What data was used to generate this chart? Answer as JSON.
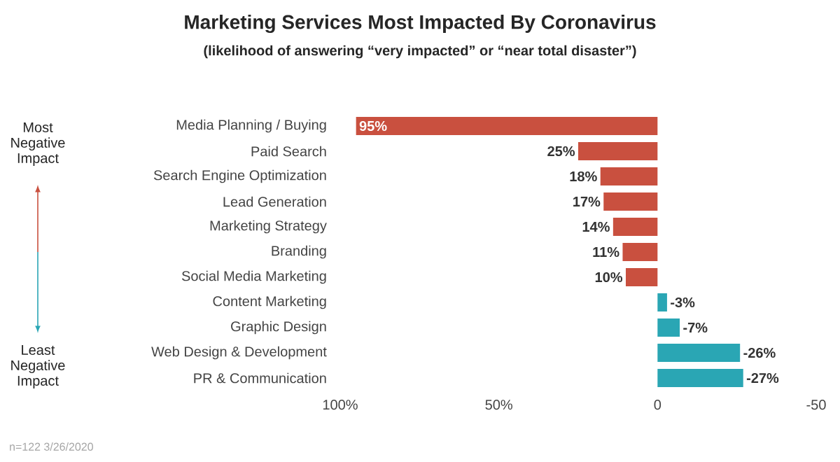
{
  "chart_data": {
    "type": "bar",
    "orientation": "horizontal",
    "title": "Marketing Services Most Impacted By Coronavirus",
    "subtitle": "(likelihood of answering “very impacted” or “near total disaster”)",
    "categories": [
      "Media Planning / Buying",
      "Paid Search",
      "Search Engine Optimization",
      "Lead Generation",
      "Marketing Strategy",
      "Branding",
      "Social Media Marketing",
      "Content Marketing",
      "Graphic Design",
      "Web Design & Development",
      "PR & Communication"
    ],
    "values": [
      95,
      25,
      18,
      17,
      14,
      11,
      10,
      -3,
      -7,
      -26,
      -27
    ],
    "value_labels": [
      "95%",
      "25%",
      "18%",
      "17%",
      "14%",
      "11%",
      "10%",
      "-3%",
      "-7%",
      "-26%",
      "-27%"
    ],
    "colors": [
      "#c9503f",
      "#c9503f",
      "#c9503f",
      "#c9503f",
      "#c9503f",
      "#c9503f",
      "#c9503f",
      "#2aa6b4",
      "#2aa6b4",
      "#2aa6b4",
      "#2aa6b4"
    ],
    "xlim": [
      100,
      -50
    ],
    "xticks": [
      {
        "value": 100,
        "label": "100%"
      },
      {
        "value": 50,
        "label": "50%"
      },
      0,
      -50
    ],
    "annotations": [
      "Most Negative Impact",
      "Least Negative Impact",
      "n=122 3/26/2020"
    ]
  }
}
